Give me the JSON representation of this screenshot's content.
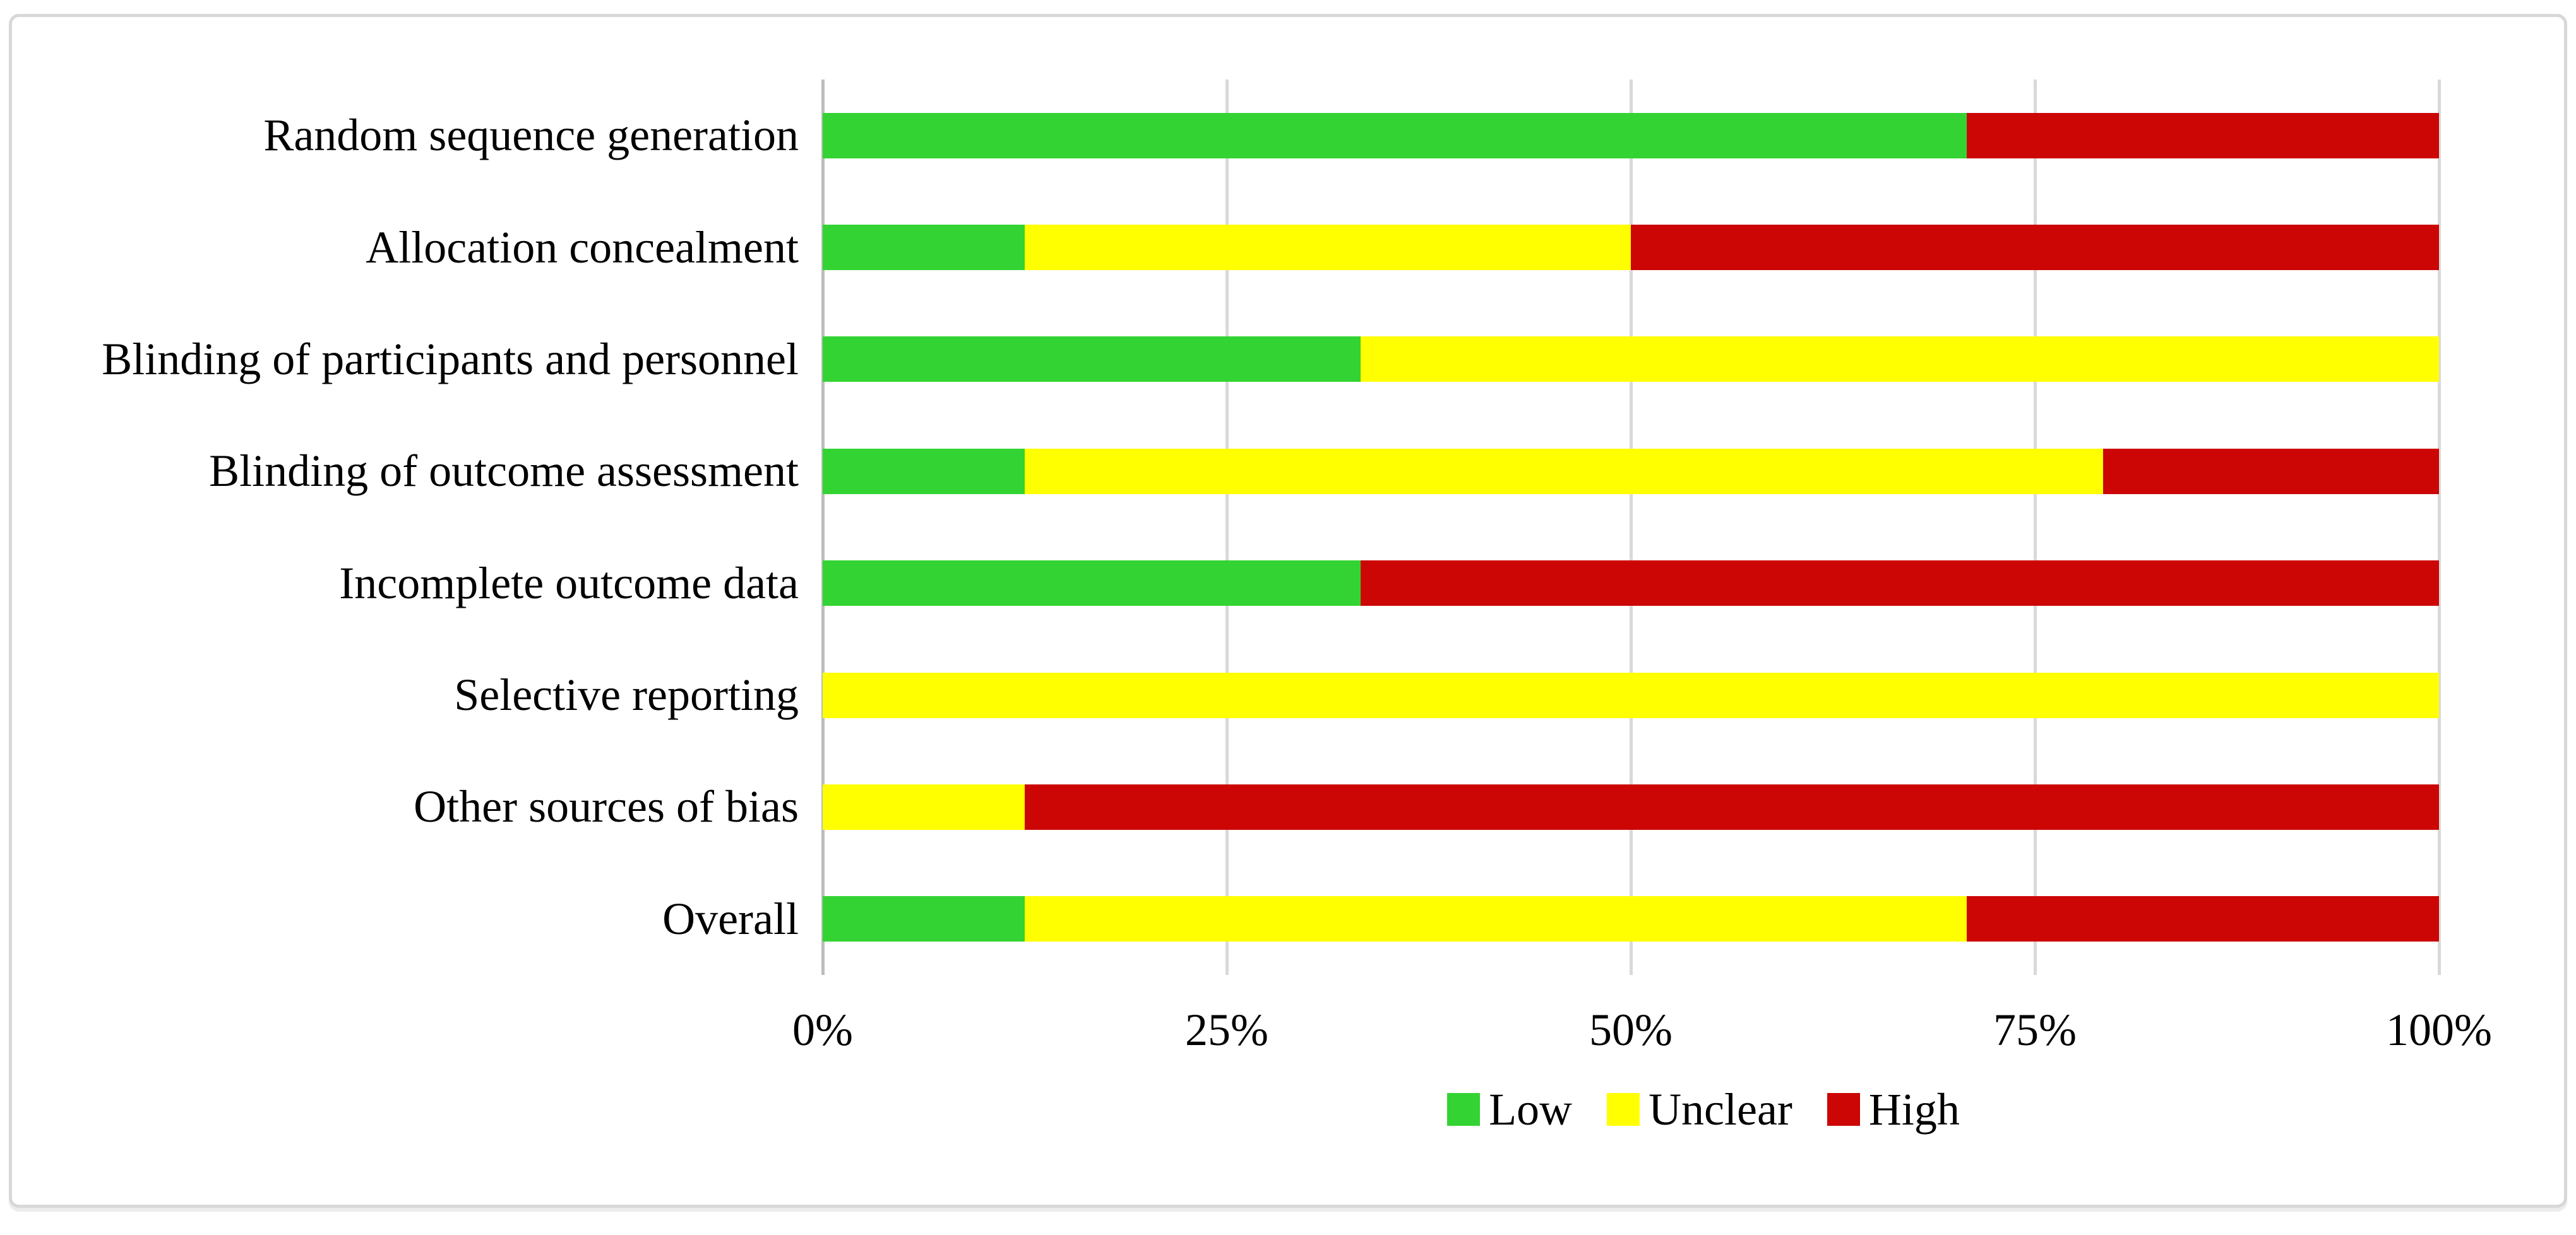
{
  "figure": {
    "background": "#ffffff",
    "border_color": "#d8d8d8"
  },
  "chart_data": {
    "type": "bar",
    "orientation": "horizontal",
    "stacked": true,
    "title": "",
    "xlabel": "",
    "ylabel": "",
    "categories": [
      "Random sequence generation",
      "Allocation concealment",
      "Blinding of participants and personnel",
      "Blinding of outcome assessment",
      "Incomplete outcome data",
      "Selective reporting",
      "Other sources of bias",
      "Overall"
    ],
    "series": [
      {
        "name": "Low",
        "color": "#33d333",
        "values": [
          70.8,
          12.5,
          33.3,
          12.5,
          33.3,
          0,
          0,
          12.5
        ]
      },
      {
        "name": "Unclear",
        "color": "#ffff00",
        "values": [
          0,
          37.5,
          66.7,
          66.7,
          0,
          100,
          12.5,
          58.3
        ]
      },
      {
        "name": "High",
        "color": "#cc0505",
        "values": [
          29.2,
          50,
          0,
          20.8,
          66.7,
          0,
          87.5,
          29.2
        ]
      }
    ],
    "x_axis": {
      "range": [
        0,
        100
      ],
      "tick_values": [
        0,
        25,
        50,
        75,
        100
      ],
      "tick_labels": [
        "0%",
        "25%",
        "50%",
        "75%",
        "100%"
      ],
      "gridlines": true,
      "gridline_color": "#d9d9d9",
      "axis_line_color": "#bdbdbd"
    },
    "legend": {
      "position": "bottom-center",
      "entries": [
        "Low",
        "Unclear",
        "High"
      ]
    }
  }
}
